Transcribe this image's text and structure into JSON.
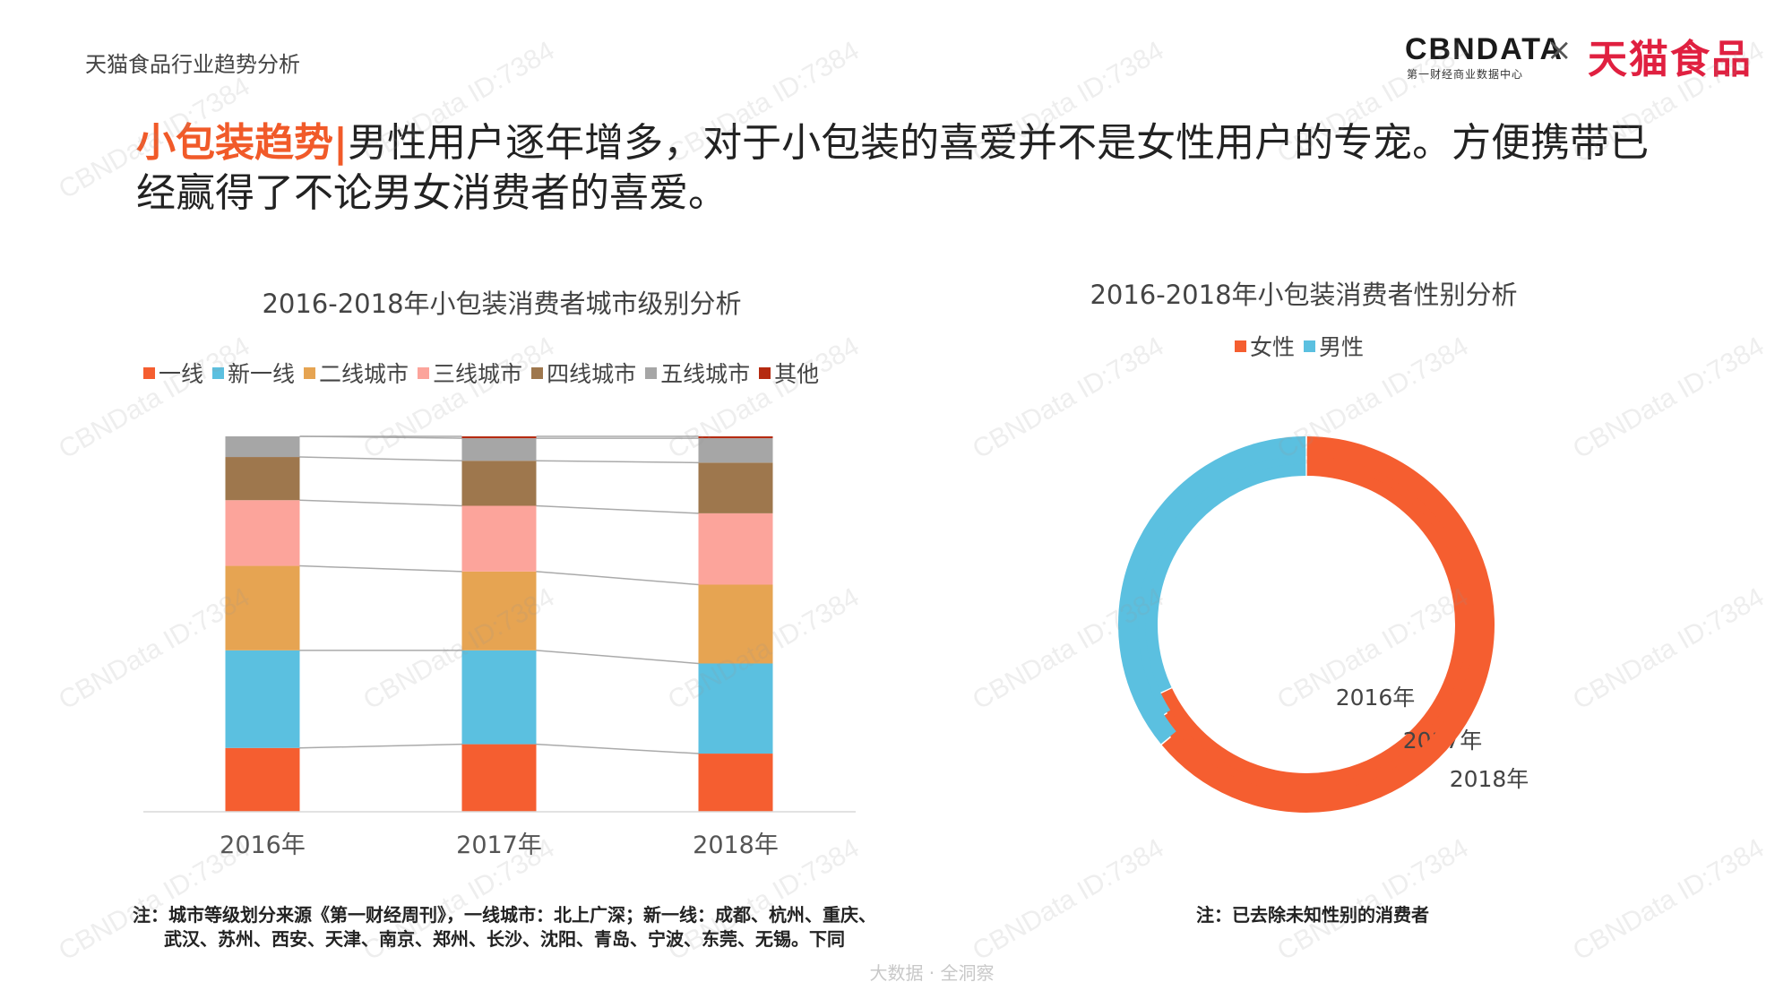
{
  "header": {
    "page_label": "天猫食品行业趋势分析",
    "logo_cbndata": "CBNDATA",
    "logo_cbndata_sub": "第一财经商业数据中心",
    "logo_separator": "×",
    "logo_tmall": "天猫食品"
  },
  "headline": {
    "highlight": "小包装趋势|",
    "text": "男性用户逐年增多，对于小包装的喜爱并不是女性用户的专宠。方便携带已经赢得了不论男女消费者的喜爱。"
  },
  "watermark": "CBNData ID:7384",
  "footer": "大数据 · 全洞察",
  "colors": {
    "一线": "#f55e30",
    "新一线": "#5bc0e0",
    "二线城市": "#e6a452",
    "三线城市": "#fca49b",
    "四线城市": "#9e774d",
    "五线城市": "#a6a6a6",
    "其他": "#b52a10",
    "女性": "#f55e30",
    "男性": "#5bc0e0"
  },
  "chart_data": [
    {
      "type": "bar",
      "stacked": true,
      "percent": true,
      "title": "2016-2018年小包装消费者城市级别分析",
      "categories": [
        "2016年",
        "2017年",
        "2018年"
      ],
      "series": [
        {
          "name": "一线",
          "values": [
            17,
            18,
            15.5
          ]
        },
        {
          "name": "新一线",
          "values": [
            26,
            25,
            24
          ]
        },
        {
          "name": "二线城市",
          "values": [
            22.5,
            21,
            21
          ]
        },
        {
          "name": "三线城市",
          "values": [
            17.5,
            17.5,
            19
          ]
        },
        {
          "name": "四线城市",
          "values": [
            11.5,
            12,
            13.5
          ]
        },
        {
          "name": "五线城市",
          "values": [
            5.5,
            6,
            6.5
          ]
        },
        {
          "name": "其他",
          "values": [
            0,
            0.5,
            0.5
          ]
        }
      ],
      "ylim": [
        0,
        100
      ],
      "legend": "top",
      "grid": false,
      "note": "注：城市等级划分来源《第一财经周刊》，一线城市：北上广深；新一线：成都、杭州、重庆、武汉、苏州、西安、天津、南京、郑州、长沙、沈阳、青岛、宁波、东莞、无锡。下同"
    },
    {
      "type": "pie",
      "donut": true,
      "title": "2016-2018年小包装消费者性别分析",
      "rings": [
        "2016年",
        "2017年",
        "2018年"
      ],
      "series": [
        {
          "name": "女性",
          "values": [
            68,
            66,
            64
          ]
        },
        {
          "name": "男性",
          "values": [
            32,
            34,
            36
          ]
        }
      ],
      "legend": "top",
      "note": "注：已去除未知性别的消费者"
    }
  ]
}
